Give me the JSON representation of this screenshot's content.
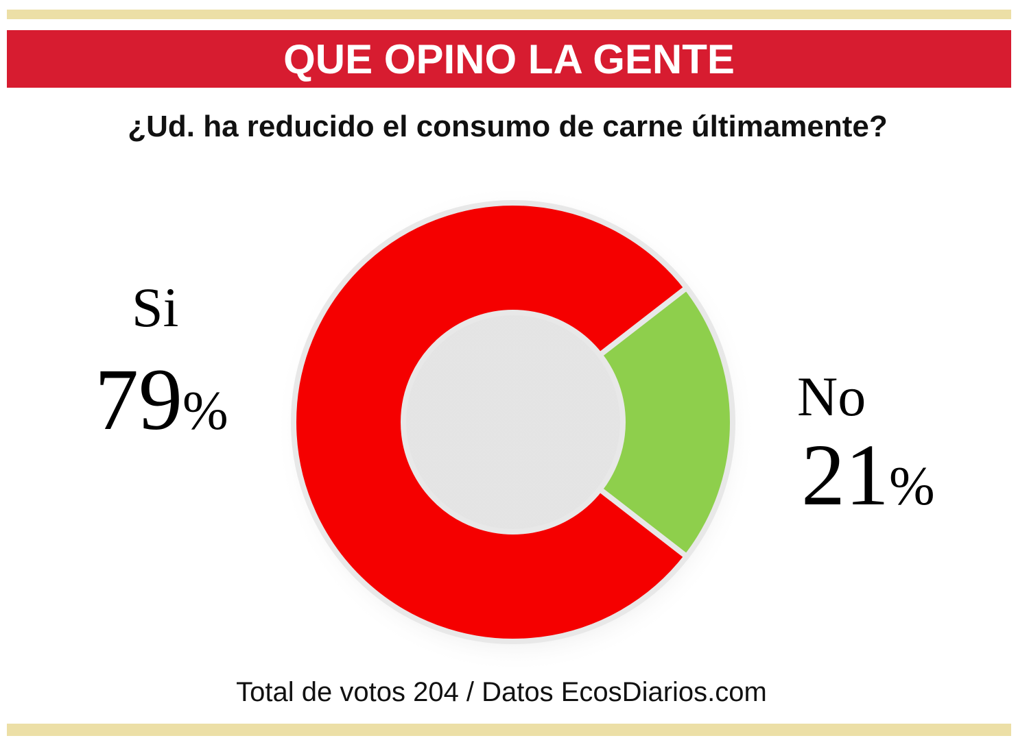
{
  "header": {
    "title": "QUE OPINO LA GENTE"
  },
  "question": "¿Ud. ha reducido el consumo de carne últimamente?",
  "chart_data": {
    "type": "pie",
    "title": "¿Ud. ha reducido el consumo de carne últimamente?",
    "donut": true,
    "categories": [
      "Si",
      "No"
    ],
    "values": [
      79,
      21
    ],
    "value_labels": [
      "79",
      "21"
    ],
    "unit": "%",
    "colors": [
      "#f50000",
      "#8ecf4c"
    ]
  },
  "footer": {
    "text": "Total de votos 204 / Datos EcosDiarios.com"
  },
  "colors": {
    "banner": "#d71c30",
    "gold_bar": "#ecdfa6"
  }
}
